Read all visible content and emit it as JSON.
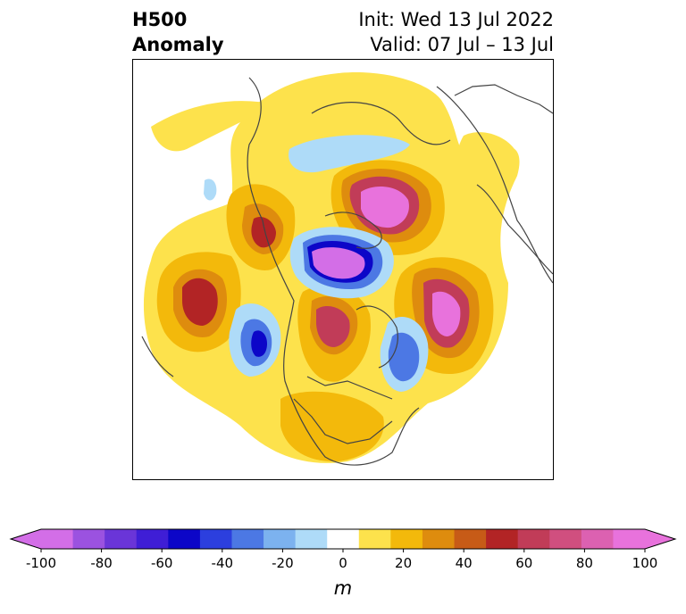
{
  "header": {
    "variable": "H500",
    "quantity": "Anomaly",
    "init": "Init: Wed 13 Jul 2022",
    "valid": "Valid: 07 Jul – 13 Jul"
  },
  "colorbar": {
    "unit": "m",
    "ticks": [
      "-100",
      "-80",
      "-60",
      "-40",
      "-20",
      "0",
      "20",
      "40",
      "60",
      "80",
      "100"
    ],
    "colors": [
      "#d36ee7",
      "#9b52e0",
      "#6a35d8",
      "#3f1ed6",
      "#0c06c8",
      "#2c3fde",
      "#4c78e4",
      "#7cb2ef",
      "#aedbf8",
      "#ffffff",
      "#fde24c",
      "#f3b90b",
      "#de8c0e",
      "#c75b17",
      "#b22425",
      "#c13c58",
      "#d04f7f",
      "#dc61b1",
      "#e872dc"
    ],
    "min_color": "#d36ee7",
    "max_color": "#e872dc"
  }
}
